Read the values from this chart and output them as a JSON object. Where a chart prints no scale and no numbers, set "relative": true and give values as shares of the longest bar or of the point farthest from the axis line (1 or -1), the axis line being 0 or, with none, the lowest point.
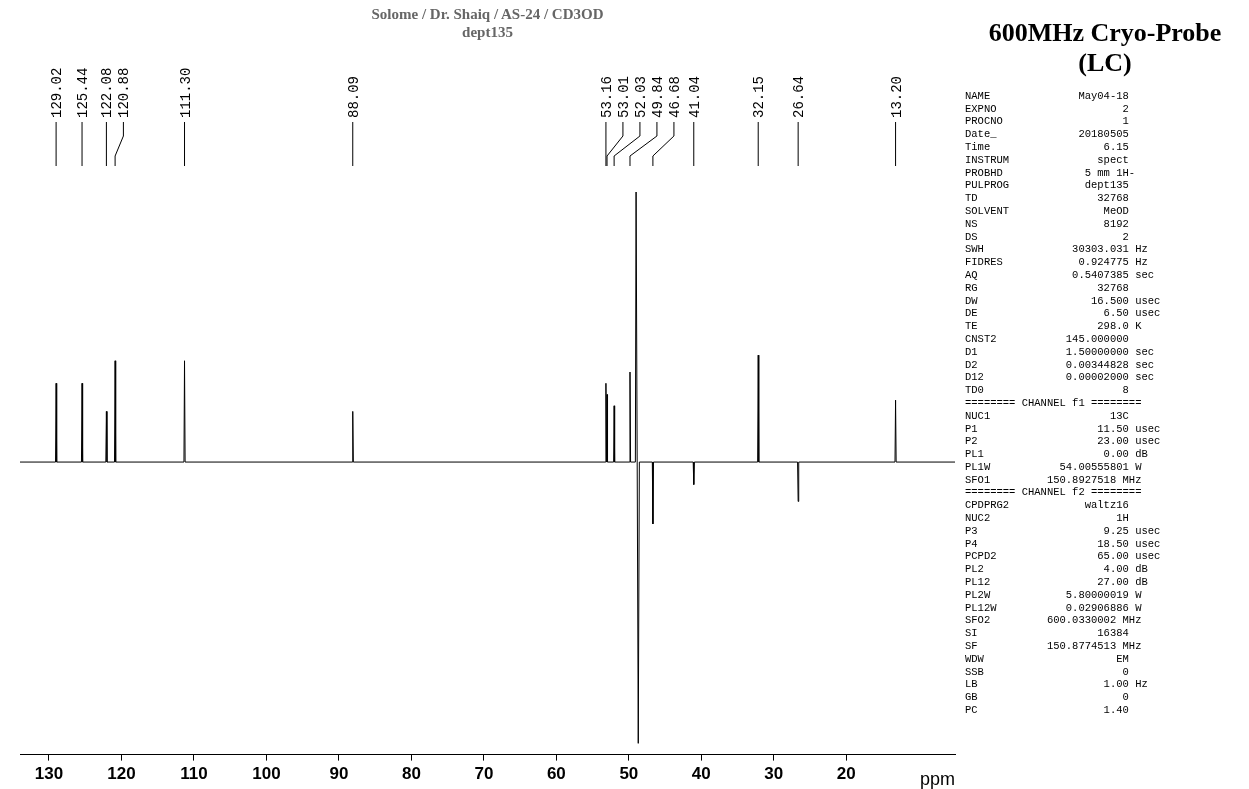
{
  "chart_data": {
    "type": "line",
    "title": "Solome / Dr. Shaiq / AS-24 / CD3OD",
    "subtitle": "dept135",
    "xlabel": "ppm",
    "relative": true,
    "grid": false,
    "legend": false,
    "tick_labels": "x",
    "marker": "none",
    "line_style": "solid",
    "xlim": [
      134,
      5
    ],
    "xticks": [
      130,
      120,
      110,
      100,
      90,
      80,
      70,
      60,
      50,
      40,
      30,
      20
    ],
    "series": [
      {
        "color": "#000000",
        "x": [
          134,
          129.1,
          129.02,
          128.94,
          125.52,
          125.44,
          125.36,
          122.16,
          122.08,
          122,
          120.96,
          120.88,
          120.8,
          111.38,
          111.3,
          111.22,
          88.17,
          88.09,
          88.01,
          53.24,
          53.16,
          53.08,
          53.01,
          52.94,
          52.1,
          52.03,
          51.96,
          49.92,
          49.84,
          49.76,
          49.1,
          49,
          48.85,
          48.7,
          48.55,
          46.76,
          46.68,
          46.6,
          41.12,
          41.04,
          40.96,
          32.23,
          32.15,
          32.07,
          26.72,
          26.64,
          26.56,
          13.28,
          13.2,
          13.12,
          5
        ],
        "values": [
          0.52,
          0.52,
          0.66,
          0.52,
          0.52,
          0.66,
          0.52,
          0.52,
          0.61,
          0.52,
          0.52,
          0.7,
          0.52,
          0.52,
          0.7,
          0.52,
          0.52,
          0.61,
          0.52,
          0.52,
          0.66,
          0.52,
          0.64,
          0.52,
          0.52,
          0.62,
          0.52,
          0.52,
          0.68,
          0.52,
          0.52,
          1,
          0.52,
          0.02,
          0.52,
          0.52,
          0.41,
          0.52,
          0.52,
          0.48,
          0.52,
          0.52,
          0.71,
          0.52,
          0.52,
          0.45,
          0.52,
          0.52,
          0.63,
          0.52,
          0.52
        ]
      }
    ],
    "annotations": [
      {
        "text": "129.02",
        "x": 129.02
      },
      {
        "text": "125.44",
        "x": 125.44
      },
      {
        "text": "122.08",
        "x": 122.08
      },
      {
        "text": "120.88",
        "x": 120.88
      },
      {
        "text": "111.30",
        "x": 111.3
      },
      {
        "text": "88.09",
        "x": 88.09
      },
      {
        "text": "53.16",
        "x": 53.16
      },
      {
        "text": "53.01",
        "x": 53.01
      },
      {
        "text": "52.03",
        "x": 52.03
      },
      {
        "text": "49.84",
        "x": 49.84
      },
      {
        "text": "46.68",
        "x": 46.68
      },
      {
        "text": "41.04",
        "x": 41.04
      },
      {
        "text": "32.15",
        "x": 32.15
      },
      {
        "text": "26.64",
        "x": 26.64
      },
      {
        "text": "13.20",
        "x": 13.2
      },
      "600MHz Cryo-Probe (LC)",
      "NAME              May04-18",
      "EXPNO                    2",
      "PROCNO                   1",
      "Date_             20180505",
      "Time                  6.15",
      "INSTRUM              spect",
      "PROBHD             5 mm 1H-",
      "PULPROG            dept135",
      "TD                   32768",
      "SOLVENT               MeOD",
      "NS                    8192",
      "DS                       2",
      "SWH              30303.031 Hz",
      "FIDRES            0.924775 Hz",
      "AQ               0.5407385 sec",
      "RG                   32768",
      "DW                  16.500 usec",
      "DE                    6.50 usec",
      "TE                   298.0 K",
      "CNST2           145.000000",
      "D1              1.50000000 sec",
      "D2              0.00344828 sec",
      "D12             0.00002000 sec",
      "TD0                      8",
      "======== CHANNEL f1 ========",
      "NUC1                   13C",
      "P1                   11.50 usec",
      "P2                   23.00 usec",
      "PL1                   0.00 dB",
      "PL1W           54.00555801 W",
      "SFO1         150.8927518 MHz",
      "======== CHANNEL f2 ========",
      "CPDPRG2            waltz16",
      "NUC2                    1H",
      "P3                    9.25 usec",
      "P4                   18.50 usec",
      "PCPD2                65.00 usec",
      "PL2                   4.00 dB",
      "PL12                 27.00 dB",
      "PL2W            5.80000019 W",
      "PL12W           0.02906886 W",
      "SFO2         600.0330002 MHz",
      "SI                   16384",
      "SF           150.8774513 MHz",
      "WDW                     EM",
      "SSB                      0",
      "LB                    1.00 Hz",
      "GB                       0",
      "PC                    1.40"
    ]
  }
}
